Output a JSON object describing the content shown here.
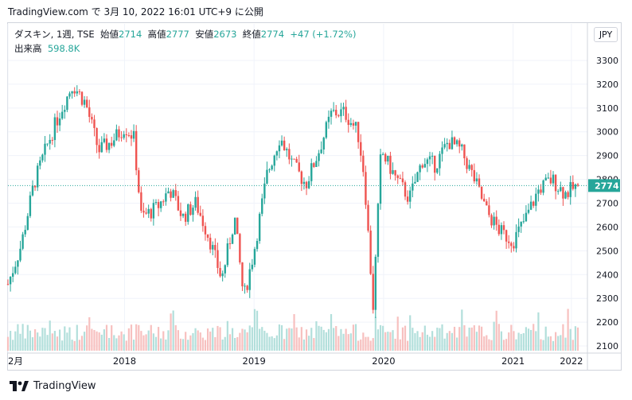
{
  "caption": "TradingView.com で 3月 10, 2022 16:01 UTC+9 に公開",
  "legend": {
    "symbol": "ダスキン, 1週, TSE",
    "open_label": "始値",
    "open": "2714",
    "high_label": "高値",
    "high": "2777",
    "low_label": "安値",
    "low": "2673",
    "close_label": "終値",
    "close": "2774",
    "change": "+47 (+1.72%)"
  },
  "volume_legend": {
    "label": "出来高",
    "value": "598.8K"
  },
  "currency_button": "JPY",
  "last_price_label": "2774",
  "footer": {
    "brand": "TradingView"
  },
  "colors": {
    "up": "#26a69a",
    "down": "#ef5350",
    "grid": "#f0f3fa",
    "axis_text": "#131722"
  },
  "icons": {
    "logo": "tradingview-logo-icon"
  },
  "chart_data": {
    "type": "candlestick",
    "interval": "1 week",
    "y_ticks": [
      2100,
      2200,
      2300,
      2400,
      2500,
      2600,
      2700,
      2800,
      2900,
      3000,
      3100,
      3200,
      3300
    ],
    "ylim": [
      2060,
      3330
    ],
    "x_ticks": [
      "2月",
      "2018",
      "2019",
      "2020",
      "2021",
      "2022"
    ],
    "last_price": 2774,
    "series": [
      {
        "name": "price",
        "anchors": [
          [
            2017.1,
            2360
          ],
          [
            2017.2,
            2520
          ],
          [
            2017.3,
            2780
          ],
          [
            2017.4,
            2940
          ],
          [
            2017.5,
            3080
          ],
          [
            2017.6,
            3200
          ],
          [
            2017.7,
            3120
          ],
          [
            2017.8,
            2920
          ],
          [
            2017.9,
            2960
          ],
          [
            2018.0,
            3020
          ],
          [
            2018.07,
            2980
          ],
          [
            2018.13,
            2640
          ],
          [
            2018.25,
            2680
          ],
          [
            2018.35,
            2760
          ],
          [
            2018.45,
            2640
          ],
          [
            2018.55,
            2700
          ],
          [
            2018.65,
            2560
          ],
          [
            2018.75,
            2380
          ],
          [
            2018.85,
            2640
          ],
          [
            2018.92,
            2300
          ],
          [
            2019.0,
            2500
          ],
          [
            2019.1,
            2820
          ],
          [
            2019.2,
            2980
          ],
          [
            2019.3,
            2860
          ],
          [
            2019.4,
            2780
          ],
          [
            2019.5,
            2920
          ],
          [
            2019.6,
            3080
          ],
          [
            2019.7,
            3080
          ],
          [
            2019.8,
            3000
          ],
          [
            2019.85,
            2820
          ],
          [
            2019.92,
            2260
          ],
          [
            2019.98,
            2920
          ],
          [
            2020.1,
            2800
          ],
          [
            2020.2,
            2720
          ],
          [
            2020.3,
            2880
          ],
          [
            2020.4,
            2860
          ],
          [
            2020.5,
            2960
          ],
          [
            2020.6,
            2920
          ],
          [
            2020.7,
            2800
          ],
          [
            2020.8,
            2660
          ],
          [
            2020.9,
            2580
          ],
          [
            2021.0,
            2540
          ],
          [
            2021.1,
            2640
          ],
          [
            2021.2,
            2760
          ],
          [
            2021.3,
            2800
          ],
          [
            2021.4,
            2740
          ],
          [
            2021.5,
            2774
          ]
        ]
      }
    ],
    "volume": {
      "label": "出来高",
      "last": "598.8K"
    }
  }
}
